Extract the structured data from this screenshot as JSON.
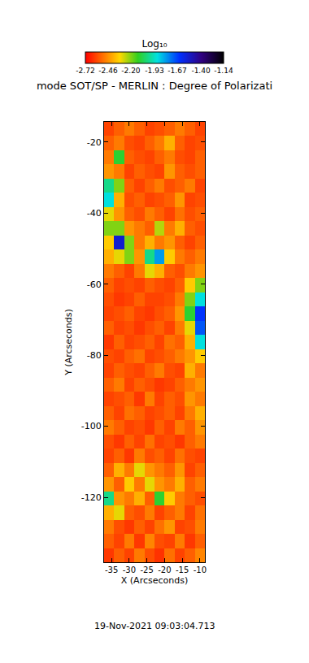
{
  "chart_data": {
    "type": "heatmap",
    "title": "mode SOT/SP - MERLIN : Degree of Polarizati",
    "x_label": "X (Arcseconds)",
    "y_label": "Y (Arcseconds)",
    "annotations": [
      "19-Nov-2021 09:03:04.713"
    ],
    "xlim": [
      -37.1,
      -8.6
    ],
    "xticks": [
      -35,
      -30,
      -25,
      -20,
      -15,
      -10
    ],
    "ylim": [
      -138.3,
      -14.3
    ],
    "yticks": [
      -120,
      -100,
      -80,
      -60,
      -40,
      -20
    ],
    "grid": false,
    "cells": {
      "x": [
        -35.675,
        -32.825,
        -29.975,
        -27.125,
        -24.275,
        -21.425,
        -18.575,
        -15.725,
        -12.875,
        -10.025
      ],
      "y": [
        -136.3,
        -132.3,
        -128.3,
        -124.3,
        -120.3,
        -116.3,
        -112.3,
        -108.3,
        -104.3,
        -100.3,
        -96.3,
        -92.3,
        -88.3,
        -84.3,
        -80.3,
        -76.3,
        -72.3,
        -68.3,
        -64.3,
        -60.3,
        -56.3,
        -52.3,
        -48.3,
        -44.3,
        -40.3,
        -36.3,
        -32.3,
        -28.3,
        -24.3,
        -20.3,
        -16.3
      ],
      "z": [
        [
          -2.62,
          -2.55,
          -2.6,
          -2.5,
          -2.58,
          -2.63,
          -2.52,
          -2.6,
          -2.55,
          -2.48
        ],
        [
          -2.55,
          -2.6,
          -2.5,
          -2.62,
          -2.48,
          -2.58,
          -2.6,
          -2.5,
          -2.62,
          -2.55
        ],
        [
          -2.5,
          -2.58,
          -2.62,
          -2.55,
          -2.6,
          -2.52,
          -2.45,
          -2.6,
          -2.58,
          -2.5
        ],
        [
          -2.4,
          -2.3,
          -2.55,
          -2.58,
          -2.5,
          -2.6,
          -2.55,
          -2.5,
          -2.6,
          -2.52
        ],
        [
          -2.0,
          -2.45,
          -2.5,
          -2.4,
          -2.55,
          -2.1,
          -2.35,
          -2.5,
          -2.55,
          -2.58
        ],
        [
          -2.45,
          -2.55,
          -2.35,
          -2.5,
          -2.3,
          -2.45,
          -2.5,
          -2.4,
          -2.55,
          -2.5
        ],
        [
          -2.55,
          -2.4,
          -2.5,
          -2.3,
          -2.45,
          -2.5,
          -2.55,
          -2.45,
          -2.6,
          -2.55
        ],
        [
          -2.6,
          -2.55,
          -2.62,
          -2.5,
          -2.58,
          -2.55,
          -2.6,
          -2.52,
          -2.58,
          -2.6
        ],
        [
          -2.58,
          -2.62,
          -2.55,
          -2.6,
          -2.52,
          -2.6,
          -2.58,
          -2.62,
          -2.55,
          -2.5
        ],
        [
          -2.5,
          -2.55,
          -2.6,
          -2.58,
          -2.62,
          -2.55,
          -2.6,
          -2.5,
          -2.55,
          -2.45
        ],
        [
          -2.55,
          -2.6,
          -2.52,
          -2.55,
          -2.6,
          -2.58,
          -2.55,
          -2.6,
          -2.5,
          -2.4
        ],
        [
          -2.6,
          -2.58,
          -2.55,
          -2.62,
          -2.5,
          -2.6,
          -2.55,
          -2.58,
          -2.45,
          -2.5
        ],
        [
          -2.55,
          -2.5,
          -2.6,
          -2.55,
          -2.58,
          -2.62,
          -2.6,
          -2.55,
          -2.5,
          -2.45
        ],
        [
          -2.6,
          -2.55,
          -2.58,
          -2.6,
          -2.55,
          -2.5,
          -2.58,
          -2.6,
          -2.4,
          -2.5
        ],
        [
          -2.58,
          -2.6,
          -2.55,
          -2.52,
          -2.6,
          -2.58,
          -2.55,
          -2.5,
          -2.45,
          -2.35
        ],
        [
          -2.62,
          -2.55,
          -2.6,
          -2.58,
          -2.55,
          -2.6,
          -2.52,
          -2.55,
          -2.4,
          -1.9
        ],
        [
          -2.55,
          -2.6,
          -2.58,
          -2.62,
          -2.58,
          -2.55,
          -2.6,
          -2.5,
          -2.3,
          -1.7
        ],
        [
          -2.6,
          -2.58,
          -2.55,
          -2.6,
          -2.62,
          -2.58,
          -2.55,
          -2.45,
          -2.1,
          -1.65
        ],
        [
          -2.58,
          -2.62,
          -2.6,
          -2.55,
          -2.6,
          -2.6,
          -2.58,
          -2.5,
          -2.2,
          -1.9
        ],
        [
          -2.55,
          -2.6,
          -2.58,
          -2.6,
          -2.55,
          -2.58,
          -2.6,
          -2.55,
          -2.35,
          -2.2
        ],
        [
          -2.5,
          -2.55,
          -2.6,
          -2.5,
          -2.3,
          -2.4,
          -2.55,
          -2.58,
          -2.5,
          -2.45
        ],
        [
          -2.4,
          -2.3,
          -2.2,
          -2.45,
          -2.0,
          -1.8,
          -2.35,
          -2.5,
          -2.55,
          -2.5
        ],
        [
          -2.35,
          -1.55,
          -2.2,
          -2.5,
          -2.4,
          -2.5,
          -2.45,
          -2.55,
          -2.6,
          -2.55
        ],
        [
          -2.2,
          -2.2,
          -2.45,
          -2.5,
          -2.55,
          -2.25,
          -2.5,
          -2.4,
          -2.55,
          -2.58
        ],
        [
          -2.3,
          -2.45,
          -2.55,
          -2.58,
          -2.5,
          -2.55,
          -2.6,
          -2.52,
          -2.58,
          -2.55
        ],
        [
          -1.9,
          -2.4,
          -2.58,
          -2.55,
          -2.6,
          -2.58,
          -2.55,
          -2.45,
          -2.6,
          -2.58
        ],
        [
          -2.0,
          -2.2,
          -2.55,
          -2.6,
          -2.55,
          -2.5,
          -2.58,
          -2.55,
          -2.5,
          -2.6
        ],
        [
          -2.45,
          -2.5,
          -2.6,
          -2.55,
          -2.58,
          -2.6,
          -2.45,
          -2.55,
          -2.58,
          -2.55
        ],
        [
          -2.5,
          -2.1,
          -2.55,
          -2.58,
          -2.6,
          -2.55,
          -2.5,
          -2.58,
          -2.6,
          -2.55
        ],
        [
          -2.55,
          -2.5,
          -2.58,
          -2.6,
          -2.55,
          -2.5,
          -2.4,
          -2.55,
          -2.6,
          -2.58
        ],
        [
          -2.6,
          -2.55,
          -2.5,
          -2.55,
          -2.6,
          -2.58,
          -2.55,
          -2.5,
          -2.55,
          -2.6
        ]
      ]
    },
    "colorbar": {
      "title": "Log₁₀",
      "range": [
        -2.72,
        -1.14
      ],
      "ticks": [
        -2.72,
        -2.46,
        {
          "value": -2.2,
          "label": "-2.20"
        },
        -1.93,
        -1.67,
        {
          "value": -1.4,
          "label": "-1.40"
        },
        -1.14
      ]
    }
  }
}
